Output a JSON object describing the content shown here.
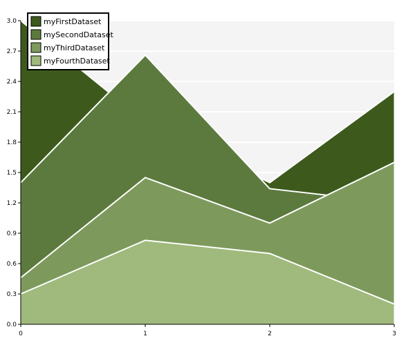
{
  "chart_data": {
    "type": "area",
    "x": [
      0,
      1,
      2,
      3
    ],
    "xticks": [
      "0",
      "1",
      "2",
      "3"
    ],
    "ylim": [
      0,
      3.0
    ],
    "yticks": [
      "0.0",
      "0.3",
      "0.6",
      "0.9",
      "1.2",
      "1.5",
      "1.8",
      "2.1",
      "2.4",
      "2.7",
      "3.0"
    ],
    "grid": true,
    "legend_position": "top-left",
    "series": [
      {
        "name": "myFirstDataset",
        "values": [
          3.0,
          2.0,
          1.4,
          2.3
        ],
        "color": "#3d5a1c"
      },
      {
        "name": "mySecondDataset",
        "values": [
          1.4,
          2.66,
          1.34,
          1.2
        ],
        "color": "#5c7a3e"
      },
      {
        "name": "myThirdDataset",
        "values": [
          0.46,
          1.45,
          1.0,
          1.6
        ],
        "color": "#7d9a5c"
      },
      {
        "name": "myFourthDataset",
        "values": [
          0.3,
          0.83,
          0.7,
          0.2
        ],
        "color": "#9fba7c"
      }
    ],
    "plot_background": "#f4f4f4",
    "grid_color": "#ffffff",
    "series_outline_color": "#ffffff"
  }
}
